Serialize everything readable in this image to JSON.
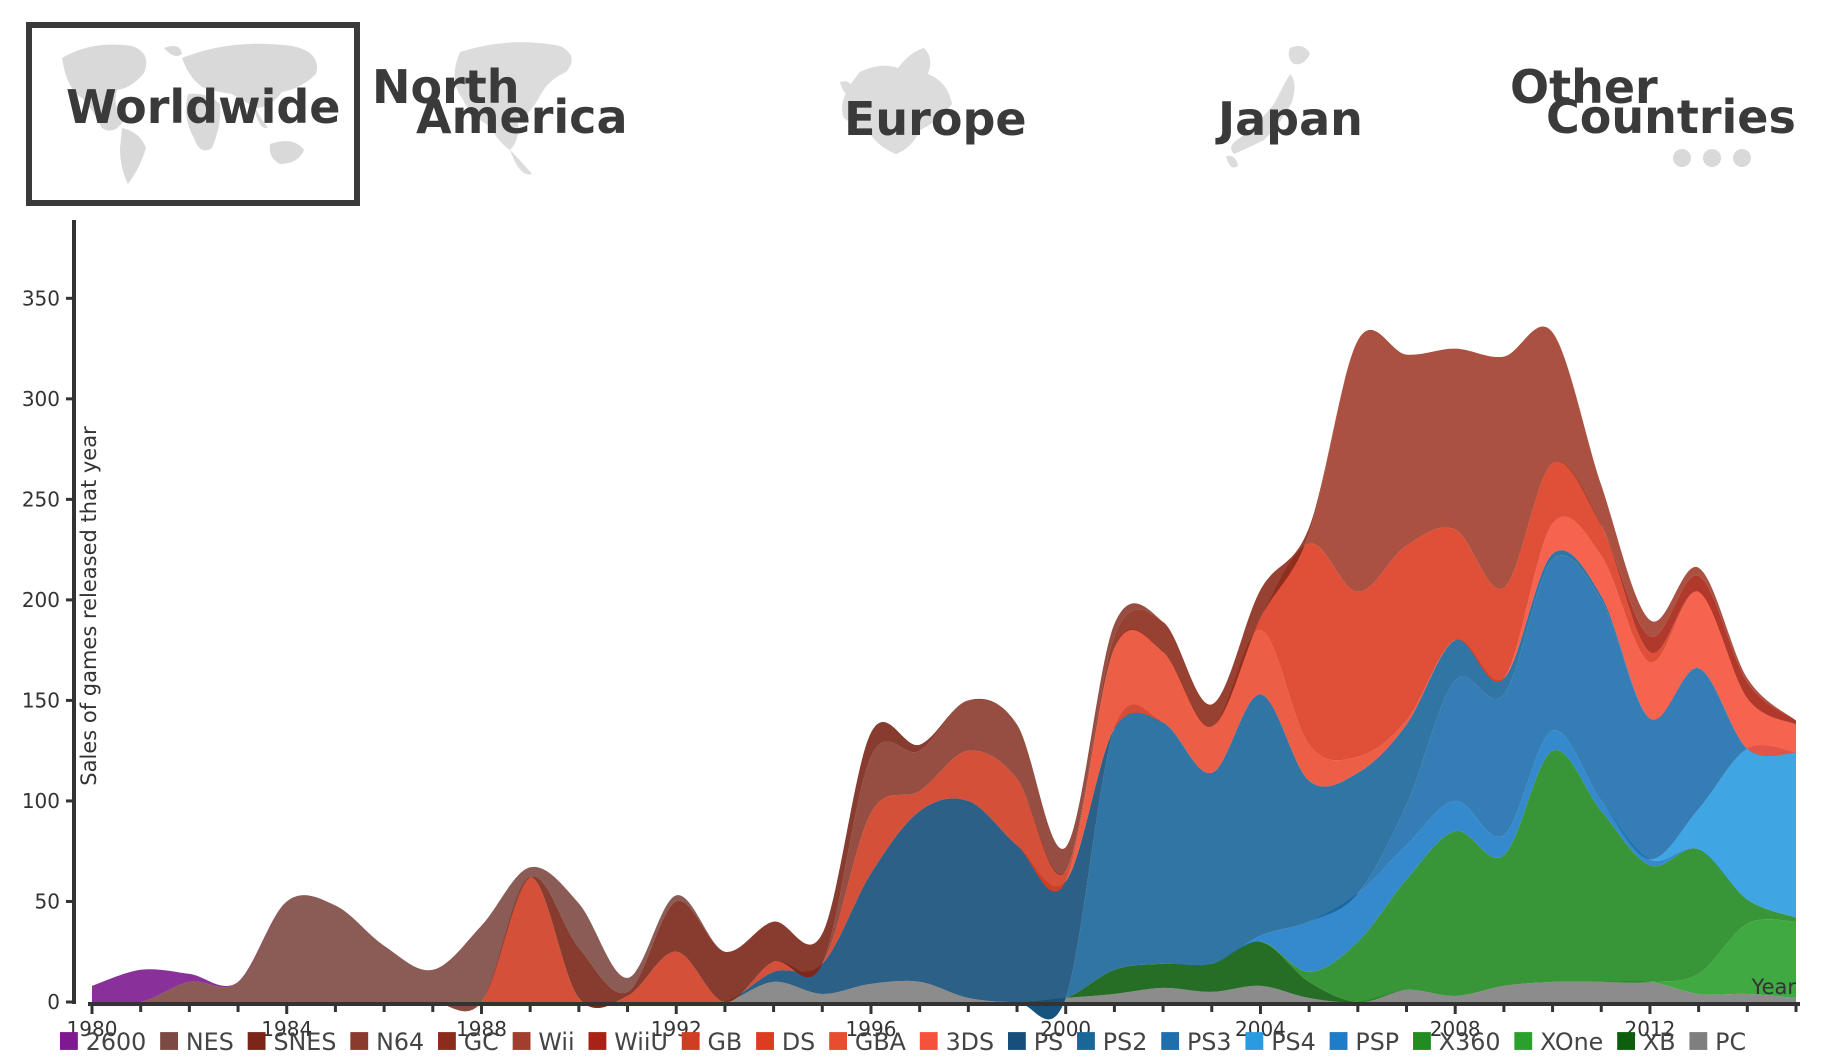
{
  "tabs": [
    {
      "id": "worldwide",
      "label": "Worldwide",
      "active": true
    },
    {
      "id": "north-america",
      "label_line1": "North",
      "label_line2": "America",
      "active": false
    },
    {
      "id": "europe",
      "label": "Europe",
      "active": false
    },
    {
      "id": "japan",
      "label": "Japan",
      "active": false
    },
    {
      "id": "other",
      "label_line1": "Other",
      "label_line2": "Countries",
      "active": false
    }
  ],
  "chart_data": {
    "type": "area",
    "stacked": true,
    "title": "",
    "xlabel": "Year",
    "ylabel": "Sales of games released that year",
    "xlim": [
      1980,
      2015
    ],
    "ylim": [
      0,
      380
    ],
    "x": [
      1980,
      1981,
      1982,
      1983,
      1984,
      1985,
      1986,
      1987,
      1988,
      1989,
      1990,
      1991,
      1992,
      1993,
      1994,
      1995,
      1996,
      1997,
      1998,
      1999,
      2000,
      2001,
      2002,
      2003,
      2004,
      2005,
      2006,
      2007,
      2008,
      2009,
      2010,
      2011,
      2012,
      2013,
      2014,
      2015
    ],
    "xticks": [
      1980,
      1984,
      1988,
      1992,
      1996,
      2000,
      2004,
      2008,
      2012
    ],
    "yticks": [
      0,
      50,
      100,
      150,
      200,
      250,
      300,
      350
    ],
    "series": [
      {
        "name": "PC",
        "color": "#7f7f7f",
        "values": [
          0,
          0,
          0,
          0,
          0,
          0,
          0,
          0,
          0,
          0,
          0,
          0,
          0,
          0,
          10,
          4,
          9,
          10,
          2,
          0,
          2,
          4,
          7,
          5,
          8,
          2,
          0,
          6,
          3,
          8,
          10,
          10,
          10,
          4,
          4,
          2
        ]
      },
      {
        "name": "XB",
        "color": "#0e5e0e",
        "values": [
          0,
          0,
          0,
          0,
          0,
          0,
          0,
          0,
          0,
          0,
          0,
          0,
          0,
          0,
          0,
          0,
          0,
          0,
          0,
          0,
          0,
          12,
          12,
          14,
          22,
          8,
          0,
          0,
          0,
          0,
          0,
          0,
          0,
          0,
          0,
          0
        ]
      },
      {
        "name": "XOne",
        "color": "#2ca02c",
        "values": [
          0,
          0,
          0,
          0,
          0,
          0,
          0,
          0,
          0,
          0,
          0,
          0,
          0,
          0,
          0,
          0,
          0,
          0,
          0,
          0,
          0,
          0,
          0,
          0,
          0,
          0,
          0,
          0,
          0,
          0,
          0,
          0,
          0,
          10,
          35,
          38
        ]
      },
      {
        "name": "X360",
        "color": "#228b22",
        "values": [
          0,
          0,
          0,
          0,
          0,
          0,
          0,
          0,
          0,
          0,
          0,
          0,
          0,
          0,
          0,
          0,
          0,
          0,
          0,
          0,
          0,
          0,
          0,
          0,
          0,
          5,
          30,
          55,
          82,
          65,
          115,
          85,
          58,
          62,
          12,
          2
        ]
      },
      {
        "name": "PSP",
        "color": "#1f7cc8",
        "values": [
          0,
          0,
          0,
          0,
          0,
          0,
          0,
          0,
          0,
          0,
          0,
          0,
          0,
          0,
          0,
          0,
          0,
          0,
          0,
          0,
          0,
          0,
          0,
          0,
          3,
          25,
          24,
          17,
          15,
          10,
          10,
          5,
          3,
          0,
          0,
          0
        ]
      },
      {
        "name": "PS4",
        "color": "#2b9be0",
        "values": [
          0,
          0,
          0,
          0,
          0,
          0,
          0,
          0,
          0,
          0,
          0,
          0,
          0,
          0,
          0,
          0,
          0,
          0,
          0,
          0,
          0,
          0,
          0,
          0,
          0,
          0,
          0,
          0,
          0,
          0,
          0,
          0,
          0,
          20,
          75,
          82
        ]
      },
      {
        "name": "PS3",
        "color": "#1f6fad",
        "values": [
          0,
          0,
          0,
          0,
          0,
          0,
          0,
          0,
          0,
          0,
          0,
          0,
          0,
          0,
          0,
          0,
          0,
          0,
          0,
          0,
          0,
          0,
          0,
          0,
          0,
          0,
          0,
          20,
          60,
          70,
          85,
          100,
          70,
          70,
          0,
          0
        ]
      },
      {
        "name": "PS2",
        "color": "#1a6699",
        "values": [
          0,
          0,
          0,
          0,
          0,
          0,
          0,
          0,
          0,
          0,
          0,
          0,
          0,
          0,
          0,
          0,
          0,
          0,
          0,
          0,
          0,
          120,
          120,
          95,
          120,
          70,
          60,
          40,
          20,
          8,
          3,
          2,
          0,
          0,
          0,
          0
        ]
      },
      {
        "name": "PS",
        "color": "#164f7a",
        "values": [
          0,
          0,
          0,
          0,
          0,
          0,
          0,
          0,
          0,
          0,
          0,
          0,
          0,
          0,
          5,
          15,
          55,
          85,
          98,
          78,
          58,
          0,
          0,
          0,
          0,
          0,
          0,
          0,
          0,
          0,
          0,
          0,
          0,
          0,
          0,
          0
        ]
      },
      {
        "name": "3DS",
        "color": "#f5523c",
        "values": [
          0,
          0,
          0,
          0,
          0,
          0,
          0,
          0,
          0,
          0,
          0,
          0,
          0,
          0,
          0,
          0,
          0,
          0,
          0,
          0,
          0,
          0,
          0,
          0,
          0,
          0,
          0,
          0,
          0,
          0,
          15,
          20,
          28,
          38,
          25,
          14
        ]
      },
      {
        "name": "GBA",
        "color": "#ea4c32",
        "values": [
          0,
          0,
          0,
          0,
          0,
          0,
          0,
          0,
          0,
          0,
          0,
          0,
          0,
          0,
          0,
          0,
          0,
          0,
          0,
          0,
          0,
          40,
          35,
          23,
          32,
          18,
          8,
          2,
          0,
          0,
          0,
          0,
          0,
          0,
          0,
          0
        ]
      },
      {
        "name": "DS",
        "color": "#dd3c22",
        "values": [
          0,
          0,
          0,
          0,
          0,
          0,
          0,
          0,
          0,
          0,
          0,
          0,
          0,
          0,
          0,
          0,
          0,
          0,
          0,
          0,
          0,
          0,
          0,
          0,
          6,
          100,
          82,
          87,
          55,
          45,
          30,
          15,
          5,
          0,
          0,
          0
        ]
      },
      {
        "name": "GB",
        "color": "#cf3d23",
        "values": [
          0,
          0,
          0,
          0,
          0,
          0,
          0,
          0,
          0,
          62,
          2,
          3,
          25,
          0,
          5,
          0,
          30,
          10,
          25,
          33,
          5,
          0,
          0,
          0,
          0,
          0,
          0,
          0,
          0,
          0,
          0,
          0,
          0,
          0,
          0,
          0
        ]
      },
      {
        "name": "WiiU",
        "color": "#a82315",
        "values": [
          0,
          0,
          0,
          0,
          0,
          0,
          0,
          0,
          0,
          0,
          0,
          0,
          0,
          0,
          0,
          0,
          0,
          0,
          0,
          0,
          0,
          0,
          0,
          0,
          0,
          0,
          0,
          0,
          0,
          0,
          0,
          0,
          8,
          8,
          8,
          2
        ]
      },
      {
        "name": "Wii",
        "color": "#a23e2e",
        "values": [
          0,
          0,
          0,
          0,
          0,
          0,
          0,
          0,
          0,
          0,
          0,
          0,
          0,
          0,
          0,
          0,
          0,
          0,
          0,
          0,
          0,
          0,
          0,
          0,
          0,
          5,
          125,
          95,
          90,
          115,
          65,
          20,
          8,
          4,
          2,
          0
        ]
      },
      {
        "name": "GC",
        "color": "#8c2c1c",
        "values": [
          0,
          0,
          0,
          0,
          0,
          0,
          0,
          0,
          0,
          0,
          0,
          0,
          0,
          0,
          0,
          0,
          0,
          0,
          0,
          0,
          0,
          6,
          15,
          11,
          14,
          3,
          0,
          0,
          0,
          0,
          0,
          0,
          0,
          0,
          0,
          0
        ]
      },
      {
        "name": "N64",
        "color": "#8b3a2e",
        "values": [
          0,
          0,
          0,
          0,
          0,
          0,
          0,
          0,
          0,
          0,
          0,
          0,
          0,
          0,
          0,
          0,
          28,
          20,
          25,
          27,
          12,
          6,
          0,
          0,
          0,
          0,
          0,
          0,
          0,
          0,
          0,
          0,
          0,
          0,
          0,
          0
        ]
      },
      {
        "name": "SNES",
        "color": "#7b2618",
        "values": [
          0,
          0,
          0,
          0,
          0,
          0,
          0,
          0,
          0,
          0,
          25,
          2,
          25,
          25,
          20,
          15,
          12,
          3,
          0,
          0,
          0,
          0,
          0,
          0,
          0,
          0,
          0,
          0,
          0,
          0,
          0,
          0,
          0,
          0,
          0,
          0
        ]
      },
      {
        "name": "NES",
        "color": "#7d4a42",
        "values": [
          0,
          0,
          10,
          10,
          50,
          48,
          28,
          16,
          38,
          5,
          22,
          7,
          3,
          0,
          0,
          0,
          0,
          0,
          0,
          0,
          0,
          0,
          0,
          0,
          0,
          0,
          0,
          0,
          0,
          0,
          0,
          0,
          0,
          0,
          0,
          0
        ]
      },
      {
        "name": "2600",
        "color": "#7d1a8f",
        "values": [
          8,
          16,
          4,
          0,
          0,
          0,
          0,
          0,
          0,
          0,
          0,
          0,
          0,
          0,
          0,
          0,
          0,
          0,
          0,
          0,
          0,
          0,
          0,
          0,
          0,
          0,
          0,
          0,
          0,
          0,
          0,
          0,
          0,
          0,
          0,
          0
        ]
      }
    ],
    "legend": [
      "2600",
      "NES",
      "SNES",
      "N64",
      "GC",
      "Wii",
      "WiiU",
      "GB",
      "DS",
      "GBA",
      "3DS",
      "PS",
      "PS2",
      "PS3",
      "PS4",
      "PSP",
      "X360",
      "XOne",
      "XB",
      "PC"
    ],
    "legend_position": "bottom"
  }
}
